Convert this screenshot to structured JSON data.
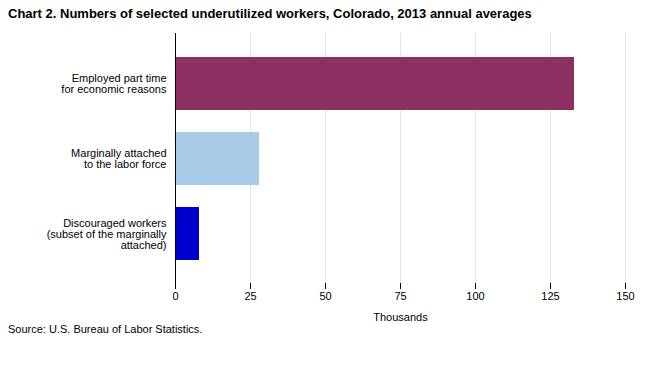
{
  "chart_data": {
    "type": "bar",
    "orientation": "horizontal",
    "title": "Chart 2. Numbers of selected underutilized workers, Colorado, 2013  annual averages",
    "categories": [
      "Discouraged workers\n(subset of the marginally\nattached)",
      "Marginally attached\nto the labor force",
      "Employed part time\nfor economic reasons"
    ],
    "values": [
      8,
      28,
      133
    ],
    "colors": [
      "#0000cc",
      "#a8cce8",
      "#8b3060"
    ],
    "xlabel": "Thousands",
    "xlim": [
      0,
      150
    ],
    "xticks": [
      0,
      25,
      50,
      75,
      100,
      125,
      150
    ],
    "grid": true,
    "source": "Source: U.S. Bureau of Labor Statistics."
  }
}
